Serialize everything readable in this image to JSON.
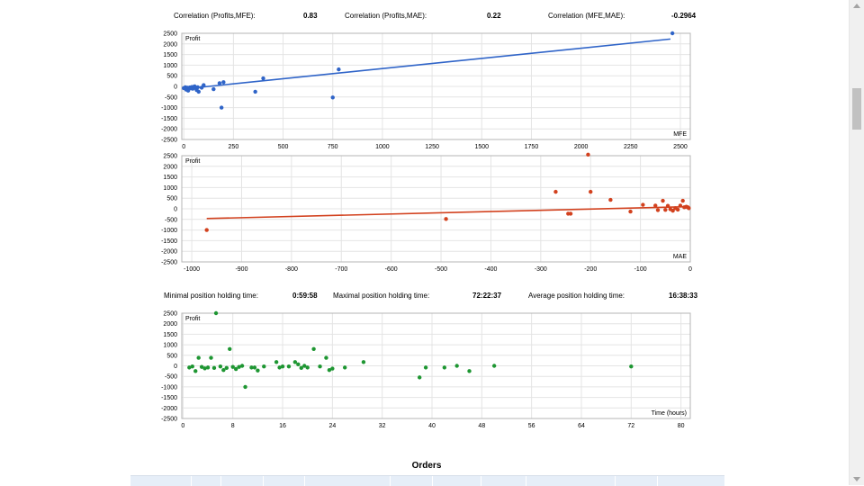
{
  "correlations": [
    {
      "label": "Correlation (Profits,MFE):",
      "value": "0.83"
    },
    {
      "label": "Correlation (Profits,MAE):",
      "value": "0.22"
    },
    {
      "label": "Correlation (MFE,MAE):",
      "value": "-0.2964"
    }
  ],
  "holding": [
    {
      "label": "Minimal position holding time:",
      "value": "0:59:58"
    },
    {
      "label": "Maximal position holding time:",
      "value": "72:22:37"
    },
    {
      "label": "Average position holding time:",
      "value": "16:38:33"
    }
  ],
  "orders_title": "Orders",
  "chart_data": [
    {
      "type": "scatter",
      "ylabel": "Profit",
      "xlabel": "MFE",
      "color": "#2f64c8",
      "xlim": [
        -10,
        2550
      ],
      "ylim": [
        -2500,
        2500
      ],
      "xticks": [
        0,
        250,
        500,
        750,
        1000,
        1250,
        1500,
        1750,
        2000,
        2250,
        2500
      ],
      "yticks": [
        2500,
        2000,
        1500,
        1000,
        500,
        0,
        -500,
        -1000,
        -1500,
        -2000,
        -2500
      ],
      "trend": [
        [
          0,
          -120
        ],
        [
          2450,
          2230
        ]
      ],
      "points": [
        [
          0,
          -80
        ],
        [
          8,
          -40
        ],
        [
          12,
          -150
        ],
        [
          18,
          -60
        ],
        [
          22,
          -200
        ],
        [
          30,
          -50
        ],
        [
          35,
          -90
        ],
        [
          40,
          -30
        ],
        [
          45,
          -110
        ],
        [
          50,
          -20
        ],
        [
          55,
          0
        ],
        [
          60,
          -80
        ],
        [
          65,
          -170
        ],
        [
          70,
          -40
        ],
        [
          75,
          -250
        ],
        [
          90,
          -60
        ],
        [
          100,
          60
        ],
        [
          150,
          -130
        ],
        [
          190,
          -1000
        ],
        [
          200,
          200
        ],
        [
          180,
          150
        ],
        [
          360,
          -250
        ],
        [
          400,
          380
        ],
        [
          750,
          -520
        ],
        [
          780,
          800
        ],
        [
          2460,
          2500
        ]
      ]
    },
    {
      "type": "scatter",
      "ylabel": "Profit",
      "xlabel": "MAE",
      "color": "#d2411e",
      "xlim": [
        -1020,
        0
      ],
      "ylim": [
        -2500,
        2500
      ],
      "xticks": [
        -1000,
        -900,
        -800,
        -700,
        -600,
        -500,
        -400,
        -300,
        -200,
        -100,
        0
      ],
      "yticks": [
        2500,
        2000,
        1500,
        1000,
        500,
        0,
        -500,
        -1000,
        -1500,
        -2000,
        -2500
      ],
      "trend": [
        [
          -970,
          -460
        ],
        [
          -5,
          100
        ]
      ],
      "points": [
        [
          -970,
          -1000
        ],
        [
          -490,
          -480
        ],
        [
          -270,
          800
        ],
        [
          -245,
          -230
        ],
        [
          -240,
          -230
        ],
        [
          -205,
          2550
        ],
        [
          -200,
          800
        ],
        [
          -160,
          420
        ],
        [
          -120,
          -130
        ],
        [
          -95,
          190
        ],
        [
          -70,
          150
        ],
        [
          -65,
          -60
        ],
        [
          -55,
          380
        ],
        [
          -50,
          -50
        ],
        [
          -45,
          140
        ],
        [
          -40,
          -20
        ],
        [
          -35,
          -90
        ],
        [
          -30,
          30
        ],
        [
          -25,
          -40
        ],
        [
          -20,
          150
        ],
        [
          -15,
          380
        ],
        [
          -12,
          70
        ],
        [
          -8,
          100
        ],
        [
          -5,
          70
        ],
        [
          -3,
          30
        ]
      ]
    },
    {
      "type": "scatter",
      "ylabel": "Profit",
      "xlabel": "Time (hours)",
      "color": "#1e9632",
      "xlim": [
        -0.2,
        81.5
      ],
      "ylim": [
        -2500,
        2500
      ],
      "xticks": [
        0,
        8,
        16,
        24,
        32,
        40,
        48,
        56,
        64,
        72,
        80
      ],
      "yticks": [
        2500,
        2000,
        1500,
        1000,
        500,
        0,
        -500,
        -1000,
        -1500,
        -2000,
        -2500
      ],
      "points": [
        [
          1,
          -80
        ],
        [
          1.5,
          -30
        ],
        [
          2,
          -250
        ],
        [
          2.5,
          380
        ],
        [
          3,
          -50
        ],
        [
          3.5,
          -120
        ],
        [
          4,
          -80
        ],
        [
          4.5,
          380
        ],
        [
          5,
          -100
        ],
        [
          5.3,
          2500
        ],
        [
          6,
          -30
        ],
        [
          6.5,
          -200
        ],
        [
          7,
          -100
        ],
        [
          7.5,
          800
        ],
        [
          8,
          -50
        ],
        [
          8.5,
          -150
        ],
        [
          9,
          -50
        ],
        [
          9.5,
          0
        ],
        [
          10,
          -1000
        ],
        [
          11,
          -80
        ],
        [
          11.5,
          -80
        ],
        [
          12,
          -220
        ],
        [
          13,
          -30
        ],
        [
          15,
          180
        ],
        [
          15.5,
          -80
        ],
        [
          16,
          -30
        ],
        [
          17,
          -30
        ],
        [
          18,
          180
        ],
        [
          18.5,
          70
        ],
        [
          19,
          -100
        ],
        [
          19.5,
          0
        ],
        [
          20,
          -80
        ],
        [
          21,
          800
        ],
        [
          22,
          -30
        ],
        [
          23,
          380
        ],
        [
          23.5,
          -200
        ],
        [
          24,
          -130
        ],
        [
          26,
          -80
        ],
        [
          29,
          180
        ],
        [
          38,
          -550
        ],
        [
          39,
          -80
        ],
        [
          42,
          -80
        ],
        [
          44,
          0
        ],
        [
          46,
          -250
        ],
        [
          50,
          0
        ],
        [
          72,
          -30
        ]
      ]
    }
  ]
}
